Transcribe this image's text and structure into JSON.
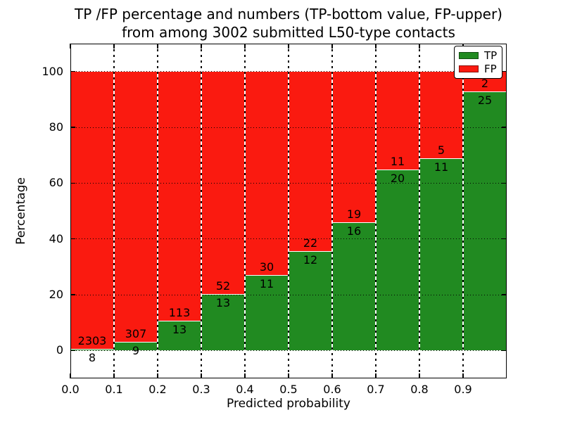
{
  "title": {
    "line1": "TP /FP percentage and numbers (TP-bottom value, FP-upper)",
    "line2": "from among 3002 submitted L50-type contacts"
  },
  "axes": {
    "xlabel": "Predicted probability",
    "ylabel": "Percentage",
    "ytick_labels": [
      "0",
      "20",
      "40",
      "60",
      "80",
      "100"
    ],
    "xtick_labels": [
      "0.0",
      "0.1",
      "0.2",
      "0.3",
      "0.4",
      "0.5",
      "0.6",
      "0.7",
      "0.8",
      "0.9"
    ]
  },
  "legend": {
    "items": [
      {
        "label": "TP",
        "color": "#218a21"
      },
      {
        "label": "FP",
        "color": "#fa1a10"
      }
    ]
  },
  "chart_data": {
    "type": "bar",
    "stacked": true,
    "title": "TP /FP percentage and numbers (TP-bottom value, FP-upper) from among 3002 submitted L50-type contacts",
    "xlabel": "Predicted probability",
    "ylabel": "Percentage",
    "total_contacts": 3002,
    "bin_width": 0.1,
    "categories": [
      "0.0-0.1",
      "0.1-0.2",
      "0.2-0.3",
      "0.3-0.4",
      "0.4-0.5",
      "0.5-0.6",
      "0.6-0.7",
      "0.7-0.8",
      "0.8-0.9",
      "0.9-1.0"
    ],
    "series": [
      {
        "name": "TP",
        "color": "#218a21",
        "counts": [
          8,
          9,
          13,
          13,
          11,
          12,
          16,
          20,
          11,
          25
        ]
      },
      {
        "name": "FP",
        "color": "#fa1a10",
        "counts": [
          2303,
          307,
          113,
          52,
          30,
          22,
          19,
          11,
          5,
          2
        ]
      }
    ],
    "note": "bars stacked to 100%; green TP height = tp/(tp+fp)*100, count labels printed at segment boundary (TP below, FP above)",
    "ylim": [
      -10,
      110
    ],
    "xlim": [
      0.0,
      1.0
    ],
    "yticks": [
      0,
      20,
      40,
      60,
      80,
      100
    ],
    "xticks": [
      0.0,
      0.1,
      0.2,
      0.3,
      0.4,
      0.5,
      0.6,
      0.7,
      0.8,
      0.9
    ],
    "grid": true,
    "legend_position": "upper right"
  }
}
